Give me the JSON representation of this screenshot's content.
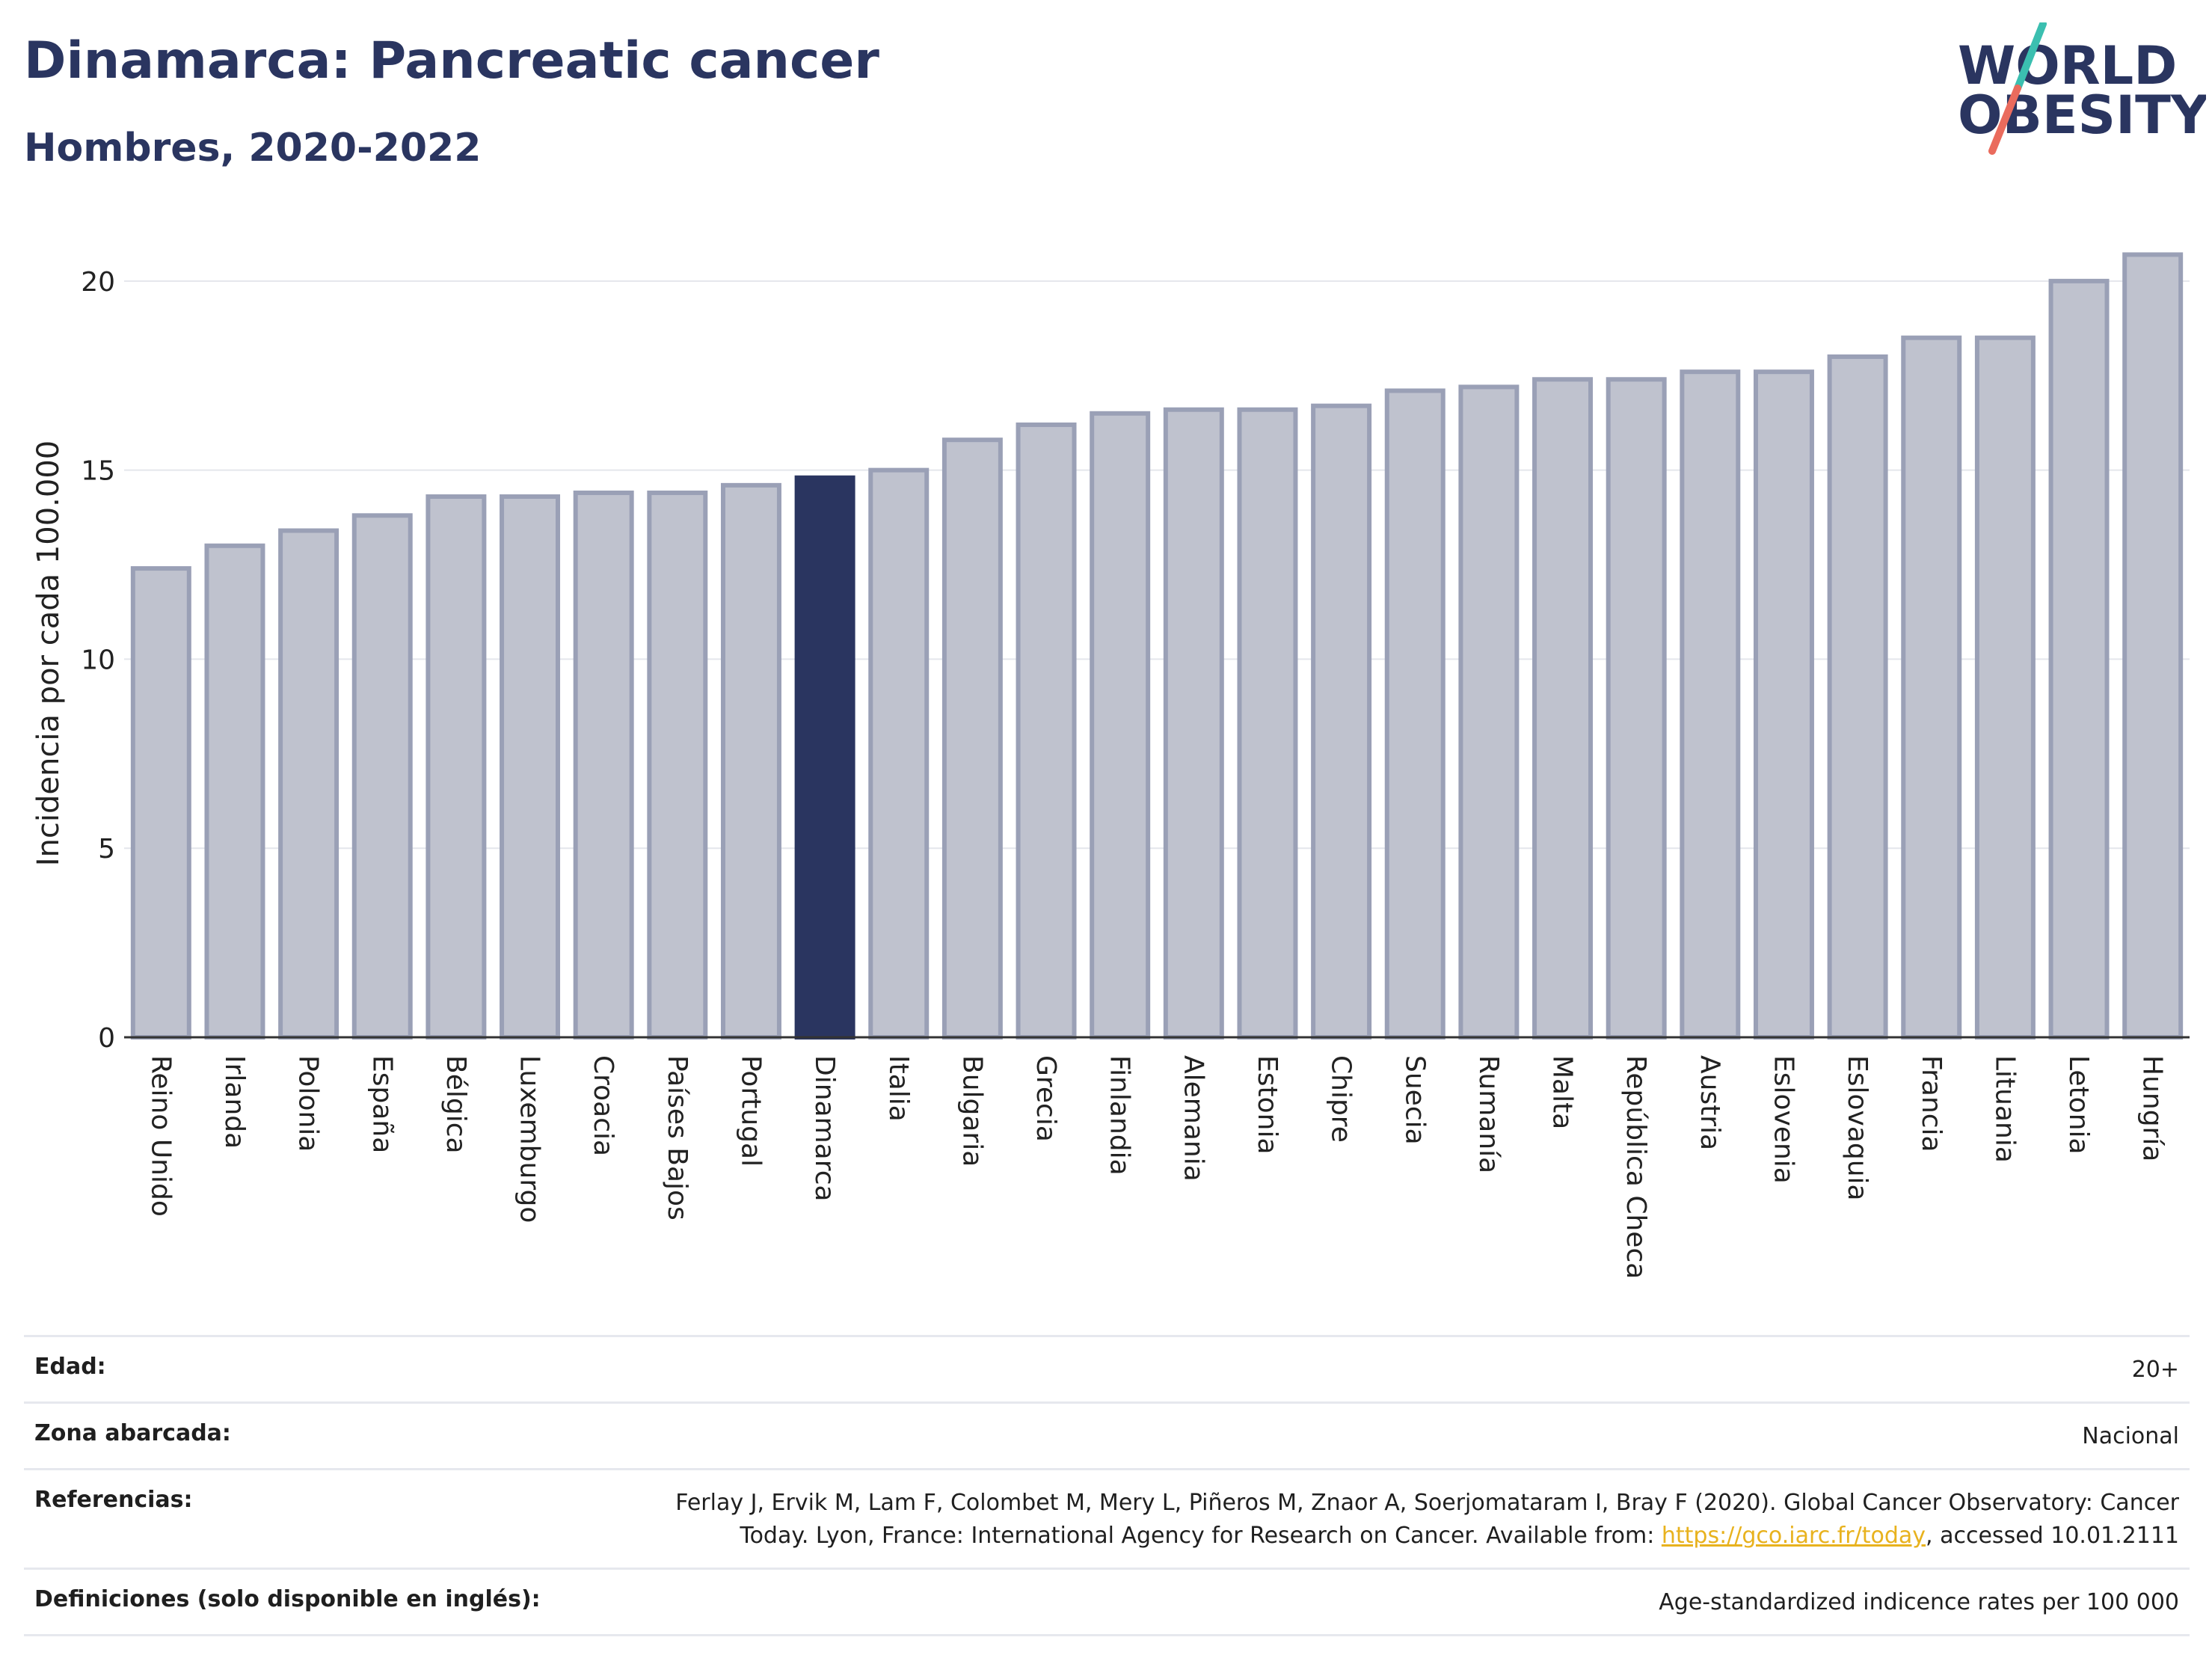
{
  "header": {
    "title": "Dinamarca: Pancreatic cancer",
    "subtitle": "Hombres, 2020-2022"
  },
  "logo": {
    "line1": "WORLD",
    "line2": "OBESITY",
    "colors": {
      "text": "#2a3560",
      "slash_top": "#3bbfb0",
      "slash_bottom": "#ea6b5d"
    }
  },
  "chart_data": {
    "type": "bar",
    "title": "Dinamarca: Pancreatic cancer",
    "subtitle": "Hombres, 2020-2022",
    "ylabel": "Incidencia por cada 100.000",
    "xlabel": "",
    "ylim": [
      0,
      21.5
    ],
    "yticks": [
      0,
      5,
      10,
      15,
      20
    ],
    "grid": true,
    "highlight": "Dinamarca",
    "colors": {
      "bar": "#bfc2ce",
      "bar_edge": "#9aa0b6",
      "highlight": "#2a3560"
    },
    "categories": [
      "Reino Unido",
      "Irlanda",
      "Polonia",
      "España",
      "Bélgica",
      "Luxemburgo",
      "Croacia",
      "Países Bajos",
      "Portugal",
      "Dinamarca",
      "Italia",
      "Bulgaria",
      "Grecia",
      "Finlandia",
      "Alemania",
      "Estonia",
      "Chipre",
      "Suecia",
      "Rumanía",
      "Malta",
      "República Checa",
      "Austria",
      "Eslovenia",
      "Eslovaquia",
      "Francia",
      "Lituania",
      "Letonia",
      "Hungría"
    ],
    "values": [
      12.4,
      13.0,
      13.4,
      13.8,
      14.3,
      14.3,
      14.4,
      14.4,
      14.6,
      14.8,
      15.0,
      15.8,
      16.2,
      16.5,
      16.6,
      16.6,
      16.7,
      17.1,
      17.2,
      17.4,
      17.4,
      17.6,
      17.6,
      18.0,
      18.5,
      18.5,
      20.0,
      20.7
    ]
  },
  "info": {
    "rows": [
      {
        "key": "Edad:",
        "value": "20+"
      },
      {
        "key": "Zona abarcada:",
        "value": "Nacional"
      },
      {
        "key": "Referencias:",
        "value_before": "Ferlay J, Ervik M, Lam F, Colombet M, Mery L, Piñeros M, Znaor A, Soerjomataram I, Bray F (2020). Global Cancer Observatory: Cancer Today. Lyon, France: International Agency for Research on Cancer. Available from: ",
        "link": "https://gco.iarc.fr/today",
        "value_after": ", accessed 10.01.2111"
      },
      {
        "key": "Definiciones (solo disponible en inglés):",
        "value": "Age-standardized indicence rates per 100 000"
      }
    ]
  }
}
